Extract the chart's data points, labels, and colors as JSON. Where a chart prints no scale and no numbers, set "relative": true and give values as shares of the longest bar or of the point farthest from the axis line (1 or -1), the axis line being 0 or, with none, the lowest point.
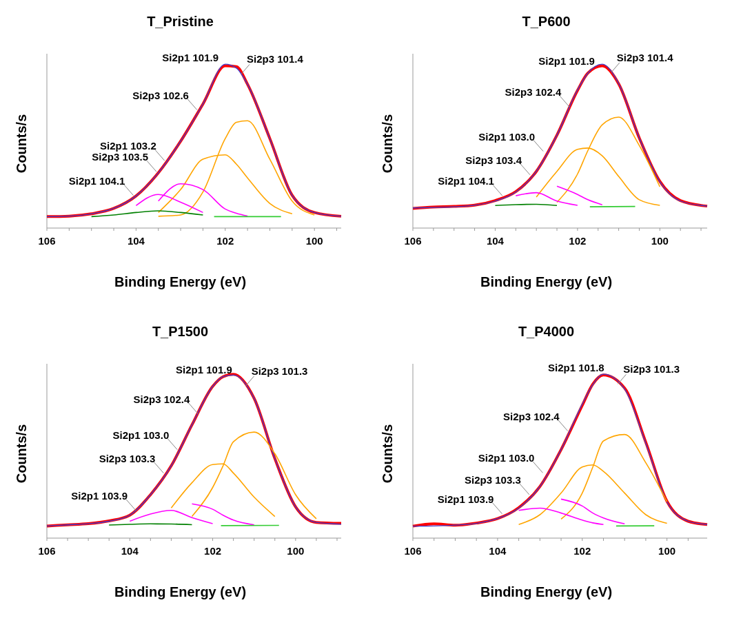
{
  "chart_data": [
    {
      "type": "line",
      "title": "T_Pristine",
      "xlabel": "Binding Energy (eV)",
      "ylabel": "Counts/s",
      "relative": true,
      "tick_labels": "x",
      "xlim": [
        106,
        99.4
      ],
      "xticks": [
        106,
        {
          "value": 105.5,
          "label": null
        },
        {
          "value": 105,
          "label": null
        },
        {
          "value": 104.5,
          "label": null
        },
        104,
        {
          "value": 103.5,
          "label": null
        },
        {
          "value": 103,
          "label": null
        },
        {
          "value": 102.5,
          "label": null
        },
        102,
        {
          "value": 101.5,
          "label": null
        },
        {
          "value": 101,
          "label": null
        },
        {
          "value": 100.5,
          "label": null
        },
        100,
        {
          "value": 99.5,
          "label": null
        }
      ],
      "x": [
        106,
        105.5,
        105,
        104.5,
        104,
        103.5,
        103,
        102.5,
        102,
        101.75,
        101.5,
        101,
        100.5,
        100,
        99.4
      ],
      "series": [
        {
          "color": "#ff0000",
          "values": [
            0.07,
            0.073,
            0.087,
            0.12,
            0.196,
            0.337,
            0.53,
            0.757,
            0.99,
            0.985,
            0.877,
            0.546,
            0.2,
            0.095,
            0.072
          ]
        },
        {
          "color": "#3f3fd0",
          "values": [
            0.07,
            0.073,
            0.087,
            0.12,
            0.196,
            0.337,
            0.53,
            0.757,
            1.0,
            0.976,
            0.877,
            0.546,
            0.2,
            0.095,
            0.072
          ]
        },
        {
          "color": "#ffa500",
          "values": [
            null,
            null,
            null,
            null,
            null,
            0.072,
            0.08,
            0.22,
            0.546,
            0.645,
            0.655,
            0.42,
            0.165,
            0.08,
            null
          ]
        },
        {
          "color": "#ffa500",
          "values": [
            null,
            null,
            null,
            null,
            null,
            0.095,
            0.235,
            0.42,
            0.447,
            0.39,
            0.306,
            0.15,
            0.087,
            null,
            null
          ]
        },
        {
          "color": "#ff00ff",
          "values": [
            null,
            null,
            null,
            null,
            null,
            0.165,
            0.27,
            0.235,
            0.116,
            0.09,
            0.073,
            null,
            null,
            null,
            null
          ]
        },
        {
          "color": "#ff00ff",
          "values": [
            null,
            null,
            null,
            null,
            0.137,
            0.205,
            0.158,
            0.095,
            null,
            null,
            null,
            null,
            null,
            null,
            null
          ]
        },
        {
          "color": "#008000",
          "values": [
            null,
            null,
            0.07,
            0.08,
            0.095,
            0.105,
            0.095,
            0.08,
            null,
            null,
            null,
            null,
            null,
            null,
            null
          ]
        },
        {
          "color": "#33cc33",
          "x": [
            102.25,
            100.75
          ],
          "values": [
            0.07,
            0.07
          ]
        }
      ],
      "annotations": [
        {
          "text": "Si2p1 101.9",
          "x": 102.15,
          "y": 1.0
        },
        {
          "text": "Si2p3 101.4",
          "x": 101.64,
          "y": 0.94
        },
        {
          "text": "Si2p3 102.6",
          "x": 102.6,
          "y": 0.712
        },
        {
          "text": "Si2p1 103.2",
          "x": 103.33,
          "y": 0.403
        },
        {
          "text": "Si2p3 103.5",
          "x": 103.51,
          "y": 0.335
        },
        {
          "text": "Si2p1 104.1",
          "x": 104.03,
          "y": 0.191
        }
      ]
    },
    {
      "type": "line",
      "title": "T_P600",
      "xlabel": "Binding Energy (eV)",
      "ylabel": "Counts/s",
      "relative": true,
      "tick_labels": "x",
      "xlim": [
        106,
        98.85
      ],
      "xticks": [
        106,
        {
          "value": 105.5,
          "label": null
        },
        {
          "value": 105,
          "label": null
        },
        {
          "value": 104.5,
          "label": null
        },
        104,
        {
          "value": 103.5,
          "label": null
        },
        {
          "value": 103,
          "label": null
        },
        {
          "value": 102.5,
          "label": null
        },
        102,
        {
          "value": 101.5,
          "label": null
        },
        {
          "value": 101,
          "label": null
        },
        {
          "value": 100.5,
          "label": null
        },
        100,
        {
          "value": 99.5,
          "label": null
        },
        {
          "value": 99,
          "label": null
        }
      ],
      "x": [
        106,
        105.5,
        105,
        104.5,
        104,
        103.5,
        103,
        102.5,
        102,
        101.75,
        101.4,
        101,
        100.5,
        100,
        99.5,
        98.85
      ],
      "series": [
        {
          "color": "#ff0000",
          "values": [
            0.12,
            0.128,
            0.132,
            0.14,
            0.168,
            0.222,
            0.346,
            0.567,
            0.84,
            0.945,
            0.99,
            0.88,
            0.55,
            0.285,
            0.168,
            0.134
          ]
        },
        {
          "color": "#3f3fd0",
          "values": [
            0.123,
            0.126,
            0.13,
            0.139,
            0.165,
            0.22,
            0.346,
            0.567,
            0.843,
            0.945,
            1.0,
            0.882,
            0.551,
            0.283,
            0.165,
            0.134
          ]
        },
        {
          "color": "#ffa500",
          "values": [
            null,
            null,
            null,
            null,
            null,
            null,
            null,
            0.157,
            0.33,
            0.472,
            0.63,
            0.677,
            0.504,
            0.252,
            null,
            null
          ]
        },
        {
          "color": "#ffa500",
          "values": [
            null,
            null,
            null,
            null,
            null,
            null,
            0.189,
            0.346,
            0.48,
            0.488,
            0.441,
            0.315,
            0.173,
            0.139,
            null,
            null
          ]
        },
        {
          "color": "#ff00ff",
          "values": [
            null,
            null,
            null,
            null,
            null,
            null,
            null,
            0.255,
            0.205,
            0.173,
            0.142,
            null,
            null,
            null,
            null,
            null
          ]
        },
        {
          "color": "#ff00ff",
          "values": [
            null,
            null,
            null,
            null,
            null,
            0.197,
            0.216,
            0.165,
            0.139,
            null,
            null,
            null,
            null,
            null,
            null,
            null
          ]
        },
        {
          "color": "#008000",
          "values": [
            null,
            null,
            null,
            null,
            0.138,
            0.143,
            0.145,
            0.138,
            null,
            null,
            null,
            null,
            null,
            null,
            null,
            null
          ]
        },
        {
          "color": "#33cc33",
          "x": [
            101.7,
            100.6
          ],
          "values": [
            0.13,
            0.132
          ]
        }
      ],
      "annotations": [
        {
          "text": "Si2p1 101.9",
          "x": 101.58,
          "y": 0.98
        },
        {
          "text": "Si2p3 101.4",
          "x": 101.18,
          "y": 0.95
        },
        {
          "text": "Si2p3 102.4",
          "x": 102.16,
          "y": 0.73
        },
        {
          "text": "Si2p1 103.0",
          "x": 102.8,
          "y": 0.46
        },
        {
          "text": "Si2p3 103.4",
          "x": 103.12,
          "y": 0.316
        },
        {
          "text": "Si2p1 104.1",
          "x": 103.79,
          "y": 0.188
        }
      ]
    },
    {
      "type": "line",
      "title": "T_P1500",
      "xlabel": "Binding Energy (eV)",
      "ylabel": "Counts/s",
      "relative": true,
      "tick_labels": "x",
      "xlim": [
        106,
        98.9
      ],
      "xticks": [
        106,
        {
          "value": 105.5,
          "label": null
        },
        {
          "value": 105,
          "label": null
        },
        {
          "value": 104.5,
          "label": null
        },
        104,
        {
          "value": 103.5,
          "label": null
        },
        {
          "value": 103,
          "label": null
        },
        {
          "value": 102.5,
          "label": null
        },
        102,
        {
          "value": 101.5,
          "label": null
        },
        {
          "value": 101,
          "label": null
        },
        {
          "value": 100.5,
          "label": null
        },
        100,
        {
          "value": 99.5,
          "label": null
        },
        {
          "value": 99,
          "label": null
        }
      ],
      "x": [
        106,
        105.5,
        105,
        104.5,
        104,
        103.5,
        103,
        102.5,
        102,
        101.75,
        101.5,
        101,
        100.5,
        100,
        99.5,
        98.9
      ],
      "series": [
        {
          "color": "#ff0000",
          "values": [
            0.074,
            0.081,
            0.088,
            0.105,
            0.14,
            0.265,
            0.441,
            0.691,
            0.926,
            0.985,
            1.0,
            0.853,
            0.485,
            0.191,
            0.096,
            0.09
          ]
        },
        {
          "color": "#3f3fd0",
          "values": [
            0.074,
            0.081,
            0.088,
            0.103,
            0.14,
            0.265,
            0.441,
            0.691,
            0.926,
            0.985,
            0.995,
            0.853,
            0.485,
            0.191,
            0.096,
            0.085
          ]
        },
        {
          "color": "#ffa500",
          "values": [
            null,
            null,
            null,
            null,
            null,
            null,
            null,
            0.132,
            0.309,
            0.441,
            0.588,
            0.647,
            0.515,
            0.265,
            0.118,
            null
          ]
        },
        {
          "color": "#ffa500",
          "values": [
            null,
            null,
            null,
            null,
            null,
            null,
            0.184,
            0.338,
            0.449,
            0.453,
            0.397,
            0.25,
            0.132,
            null,
            null,
            null
          ]
        },
        {
          "color": "#ff00ff",
          "values": [
            null,
            null,
            null,
            null,
            null,
            null,
            null,
            0.209,
            0.176,
            0.14,
            0.11,
            0.081,
            null,
            null,
            null,
            null
          ]
        },
        {
          "color": "#ff00ff",
          "values": [
            null,
            null,
            null,
            null,
            0.103,
            0.147,
            0.169,
            0.125,
            0.088,
            null,
            null,
            null,
            null,
            null,
            null,
            null
          ]
        },
        {
          "color": "#008000",
          "values": [
            null,
            null,
            null,
            0.08,
            0.084,
            0.087,
            0.086,
            0.082,
            null,
            null,
            null,
            null,
            null,
            null,
            null,
            null
          ]
        },
        {
          "color": "#33cc33",
          "x": [
            101.8,
            100.4
          ],
          "values": [
            0.076,
            0.078
          ]
        }
      ],
      "annotations": [
        {
          "text": "Si2p1 101.9",
          "x": 101.53,
          "y": 0.99
        },
        {
          "text": "Si2p3 101.3",
          "x": 101.2,
          "y": 0.93
        },
        {
          "text": "Si2p3 102.4",
          "x": 102.32,
          "y": 0.75
        },
        {
          "text": "Si2p1 103.0",
          "x": 102.82,
          "y": 0.531
        },
        {
          "text": "Si2p3 103.3",
          "x": 103.15,
          "y": 0.388
        },
        {
          "text": "Si2p1 103.9",
          "x": 103.82,
          "y": 0.16
        }
      ]
    },
    {
      "type": "line",
      "title": "T_P4000",
      "xlabel": "Binding Energy (eV)",
      "ylabel": "Counts/s",
      "relative": true,
      "tick_labels": "x",
      "xlim": [
        106,
        99.05
      ],
      "xticks": [
        106,
        {
          "value": 105.5,
          "label": null
        },
        {
          "value": 105,
          "label": null
        },
        {
          "value": 104.5,
          "label": null
        },
        104,
        {
          "value": 103.5,
          "label": null
        },
        {
          "value": 103,
          "label": null
        },
        {
          "value": 102.5,
          "label": null
        },
        102,
        {
          "value": 101.5,
          "label": null
        },
        {
          "value": 101,
          "label": null
        },
        {
          "value": 100.5,
          "label": null
        },
        100,
        {
          "value": 99.5,
          "label": null
        }
      ],
      "x": [
        106,
        105.5,
        105,
        104.5,
        104,
        103.5,
        103,
        102.5,
        102,
        101.75,
        101.5,
        101,
        100.5,
        100,
        99.5,
        99.05
      ],
      "series": [
        {
          "color": "#ff0000",
          "values": [
            0.073,
            0.087,
            0.079,
            0.092,
            0.119,
            0.186,
            0.315,
            0.54,
            0.81,
            0.94,
            0.995,
            0.915,
            0.585,
            0.225,
            0.103,
            0.083
          ]
        },
        {
          "color": "#3f3fd0",
          "values": [
            0.073,
            0.074,
            0.079,
            0.09,
            0.119,
            0.183,
            0.315,
            0.54,
            0.817,
            0.937,
            1.0,
            0.91,
            0.579,
            0.222,
            0.103,
            0.083
          ]
        },
        {
          "color": "#ffa500",
          "values": [
            null,
            null,
            null,
            null,
            null,
            null,
            null,
            0.116,
            0.275,
            0.434,
            0.593,
            0.632,
            0.46,
            0.222,
            null,
            null
          ]
        },
        {
          "color": "#ffa500",
          "values": [
            null,
            null,
            null,
            null,
            null,
            0.083,
            0.143,
            0.275,
            0.434,
            0.447,
            0.407,
            0.275,
            0.143,
            0.09,
            null,
            null
          ]
        },
        {
          "color": "#ff00ff",
          "values": [
            null,
            null,
            null,
            null,
            null,
            null,
            null,
            0.238,
            0.196,
            0.153,
            0.123,
            0.087,
            null,
            null,
            null,
            null
          ]
        },
        {
          "color": "#ff00ff",
          "values": [
            null,
            null,
            null,
            null,
            null,
            0.169,
            0.183,
            0.153,
            0.11,
            0.093,
            0.083,
            null,
            null,
            null,
            null,
            null
          ]
        },
        {
          "color": "#33cc33",
          "x": [
            101.2,
            100.3
          ],
          "values": [
            0.074,
            0.075
          ]
        }
      ],
      "annotations": [
        {
          "text": "Si2p1 101.8",
          "x": 101.48,
          "y": 1.0
        },
        {
          "text": "Si2p3 101.3",
          "x": 101.16,
          "y": 0.94
        },
        {
          "text": "Si2p3 102.4",
          "x": 102.31,
          "y": 0.645
        },
        {
          "text": "Si2p1 103.0",
          "x": 102.9,
          "y": 0.39
        },
        {
          "text": "Si2p3 103.3",
          "x": 103.22,
          "y": 0.257
        },
        {
          "text": "Si2p1 103.9",
          "x": 103.86,
          "y": 0.14
        }
      ]
    }
  ]
}
